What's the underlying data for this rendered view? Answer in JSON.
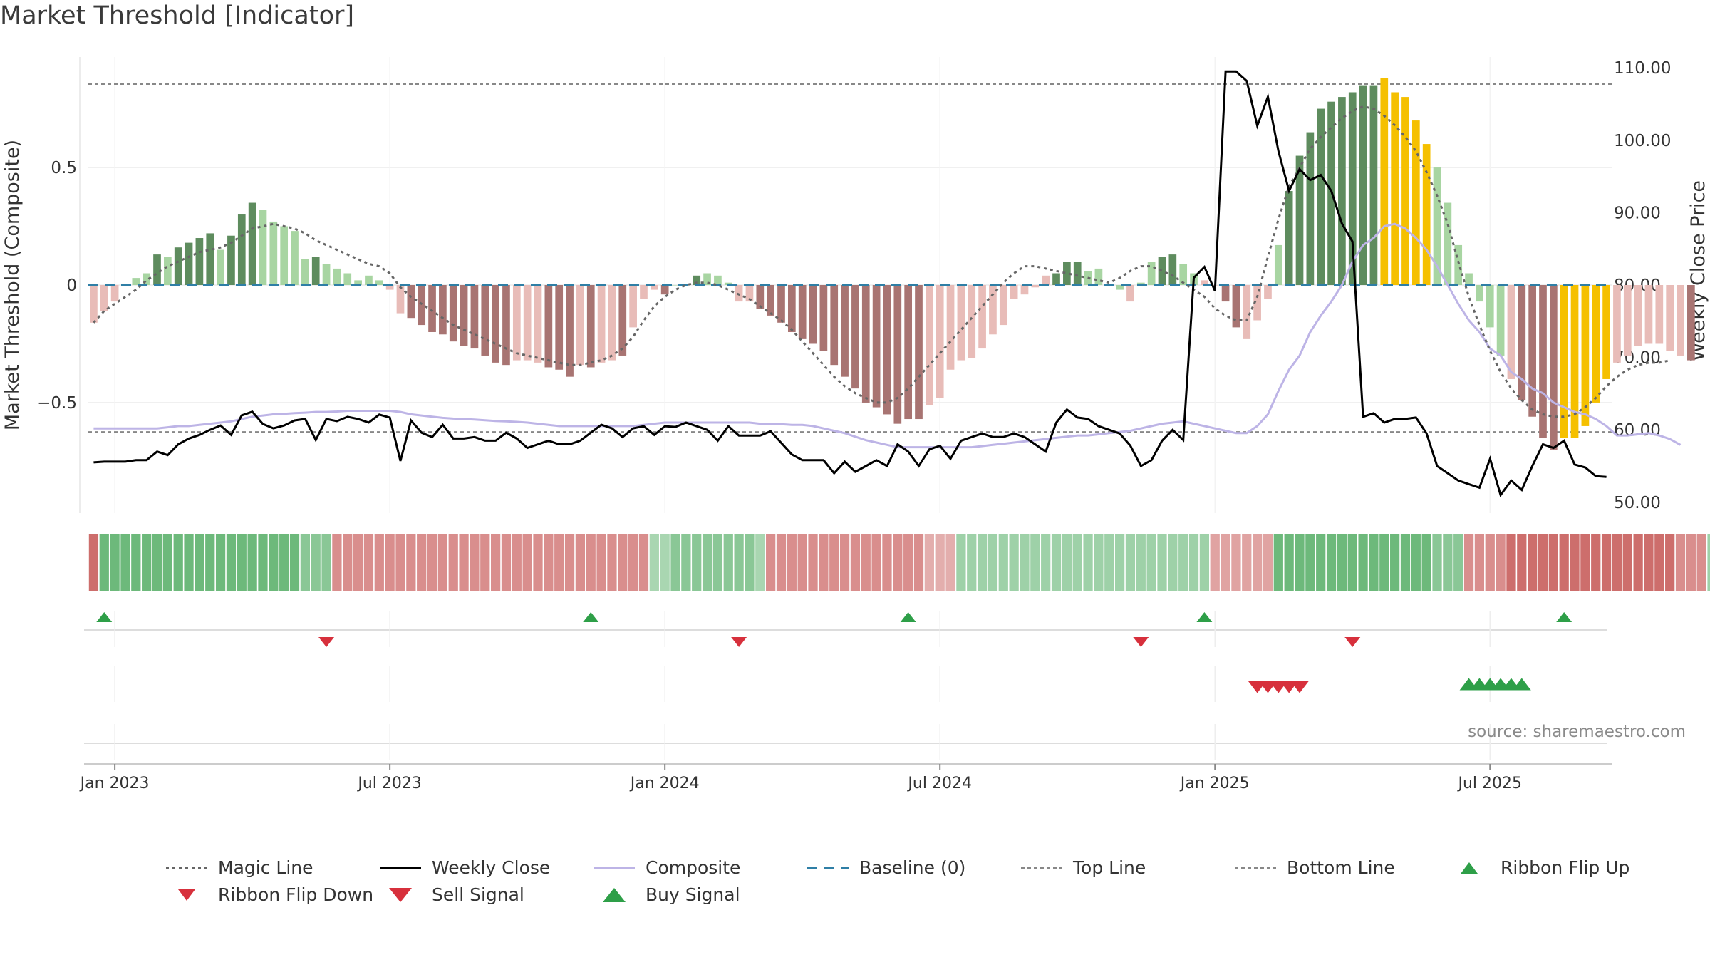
{
  "title": "Market Threshold [Indicator]",
  "source_note": "source: sharemaestro.com",
  "colors": {
    "strong_green": "#5e8c5e",
    "light_green": "#a8d5a2",
    "strong_red": "#a87472",
    "light_red": "#e8bcb8",
    "gold": "#f5c000",
    "composite": "#bdb4e6",
    "weekly_close": "#000000",
    "magic_line": "#666666",
    "baseline": "#2f7fa6",
    "threshold_line": "#888888",
    "signal_green": "#2e9f48",
    "signal_red": "#d7303c",
    "grid": "#ececec"
  },
  "chart_data": {
    "type": "bar",
    "ylabel": "Market Threshold (Composite)",
    "ylabel_right": "Weekly Close Price",
    "y_ticks": [
      "0.5",
      "0",
      "−0.5"
    ],
    "y_tick_values": [
      0.5,
      0,
      -0.5
    ],
    "y2_ticks": [
      "110.00",
      "100.00",
      "90.00",
      "80.00",
      "70.00",
      "60.00",
      "50.00"
    ],
    "y2_tick_values": [
      110,
      100,
      90,
      80,
      70,
      60,
      50
    ],
    "ylim": [
      -0.97,
      0.97
    ],
    "y2lim": [
      48.5,
      111.5
    ],
    "x_ticks": [
      "Jan 2023",
      "Jul 2023",
      "Jan 2024",
      "Jul 2024",
      "Jan 2025",
      "Jul 2025"
    ],
    "x_tick_weeks": [
      2,
      28,
      54,
      80,
      106,
      132
    ],
    "top_line": 0.855,
    "bottom_line": -0.625,
    "weeks": 144,
    "histogram": [
      -0.16,
      -0.11,
      -0.07,
      0.0,
      0.03,
      0.05,
      0.13,
      0.12,
      0.16,
      0.18,
      0.2,
      0.22,
      0.15,
      0.21,
      0.3,
      0.35,
      0.32,
      0.27,
      0.25,
      0.23,
      0.11,
      0.12,
      0.09,
      0.07,
      0.05,
      0.02,
      0.04,
      0.02,
      -0.02,
      -0.12,
      -0.14,
      -0.17,
      -0.2,
      -0.21,
      -0.24,
      -0.26,
      -0.27,
      -0.3,
      -0.33,
      -0.34,
      -0.32,
      -0.32,
      -0.33,
      -0.35,
      -0.36,
      -0.39,
      -0.34,
      -0.35,
      -0.33,
      -0.32,
      -0.3,
      -0.18,
      -0.06,
      -0.02,
      -0.04,
      0.0,
      0.0,
      0.04,
      0.05,
      0.04,
      0.01,
      -0.07,
      -0.07,
      -0.1,
      -0.13,
      -0.16,
      -0.2,
      -0.23,
      -0.25,
      -0.28,
      -0.34,
      -0.39,
      -0.44,
      -0.5,
      -0.52,
      -0.55,
      -0.59,
      -0.57,
      -0.57,
      -0.51,
      -0.48,
      -0.36,
      -0.32,
      -0.31,
      -0.27,
      -0.21,
      -0.17,
      -0.06,
      -0.04,
      -0.01,
      0.04,
      0.05,
      0.1,
      0.1,
      0.06,
      0.07,
      0.0,
      -0.02,
      -0.07,
      0.01,
      0.1,
      0.12,
      0.13,
      0.09,
      0.05,
      0.02,
      0.0,
      -0.07,
      -0.18,
      -0.23,
      -0.15,
      -0.06,
      0.17,
      0.4,
      0.55,
      0.65,
      0.75,
      0.78,
      0.8,
      0.82,
      0.85,
      0.85,
      0.88,
      0.82,
      0.8,
      0.7,
      0.6,
      0.5,
      0.35,
      0.17,
      0.05,
      -0.07,
      -0.18,
      -0.3,
      -0.4,
      -0.49,
      -0.56,
      -0.65,
      -0.7,
      -0.65,
      -0.65,
      -0.6,
      -0.5,
      -0.4,
      -0.33,
      -0.3,
      -0.26,
      -0.25,
      -0.25,
      -0.28,
      -0.3,
      -0.32
    ],
    "bar_styles": [
      "lr",
      "lr",
      "lr",
      "lg",
      "lg",
      "lg",
      "sg",
      "lg",
      "sg",
      "sg",
      "sg",
      "sg",
      "lg",
      "sg",
      "sg",
      "sg",
      "lg",
      "lg",
      "lg",
      "lg",
      "lg",
      "sg",
      "lg",
      "lg",
      "lg",
      "lg",
      "lg",
      "lg",
      "lr",
      "lr",
      "sr",
      "sr",
      "sr",
      "sr",
      "sr",
      "sr",
      "sr",
      "sr",
      "sr",
      "sr",
      "lr",
      "lr",
      "lr",
      "sr",
      "sr",
      "sr",
      "lr",
      "sr",
      "lr",
      "lr",
      "sr",
      "lr",
      "lr",
      "lr",
      "sr",
      "lg",
      "lg",
      "sg",
      "lg",
      "lg",
      "lg",
      "lr",
      "lr",
      "sr",
      "sr",
      "sr",
      "sr",
      "sr",
      "sr",
      "sr",
      "sr",
      "sr",
      "sr",
      "sr",
      "sr",
      "sr",
      "sr",
      "sr",
      "sr",
      "lr",
      "lr",
      "lr",
      "lr",
      "lr",
      "lr",
      "lr",
      "lr",
      "lr",
      "lr",
      "lr",
      "lr",
      "sg",
      "sg",
      "sg",
      "lg",
      "lg",
      "lr",
      "lg",
      "lr",
      "lg",
      "lg",
      "sg",
      "sg",
      "lg",
      "lg",
      "lr",
      "lr",
      "sr",
      "sr",
      "lr",
      "lr",
      "lr",
      "lg",
      "sg",
      "sg",
      "sg",
      "sg",
      "sg",
      "sg",
      "sg",
      "sg",
      "sg",
      "gd",
      "gd",
      "gd",
      "gd",
      "gd",
      "lg",
      "lg",
      "lg",
      "lg",
      "lg",
      "lg",
      "lg",
      "lr",
      "sr",
      "sr",
      "sr",
      "sr",
      "gd",
      "gd",
      "gd",
      "gd",
      "gd",
      "lr",
      "lr",
      "lr",
      "lr",
      "lr",
      "lr",
      "lr",
      "sr",
      "lr",
      "lr",
      "sr"
    ],
    "composite": [
      -0.61,
      -0.61,
      -0.61,
      -0.61,
      -0.61,
      -0.61,
      -0.61,
      -0.605,
      -0.6,
      -0.6,
      -0.595,
      -0.59,
      -0.585,
      -0.58,
      -0.57,
      -0.56,
      -0.555,
      -0.55,
      -0.548,
      -0.545,
      -0.543,
      -0.54,
      -0.54,
      -0.538,
      -0.535,
      -0.535,
      -0.535,
      -0.535,
      -0.535,
      -0.54,
      -0.55,
      -0.555,
      -0.56,
      -0.565,
      -0.568,
      -0.57,
      -0.572,
      -0.575,
      -0.578,
      -0.58,
      -0.582,
      -0.585,
      -0.59,
      -0.595,
      -0.6,
      -0.6,
      -0.6,
      -0.6,
      -0.6,
      -0.6,
      -0.6,
      -0.6,
      -0.595,
      -0.59,
      -0.585,
      -0.585,
      -0.585,
      -0.585,
      -0.585,
      -0.585,
      -0.585,
      -0.585,
      -0.585,
      -0.59,
      -0.59,
      -0.592,
      -0.595,
      -0.595,
      -0.6,
      -0.61,
      -0.62,
      -0.63,
      -0.645,
      -0.66,
      -0.67,
      -0.68,
      -0.69,
      -0.69,
      -0.69,
      -0.69,
      -0.69,
      -0.69,
      -0.69,
      -0.69,
      -0.685,
      -0.68,
      -0.675,
      -0.67,
      -0.665,
      -0.66,
      -0.655,
      -0.65,
      -0.645,
      -0.64,
      -0.64,
      -0.635,
      -0.63,
      -0.625,
      -0.62,
      -0.61,
      -0.6,
      -0.59,
      -0.585,
      -0.58,
      -0.59,
      -0.6,
      -0.61,
      -0.62,
      -0.63,
      -0.63,
      -0.6,
      -0.55,
      -0.45,
      -0.36,
      -0.3,
      -0.2,
      -0.13,
      -0.07,
      0.0,
      0.1,
      0.17,
      0.2,
      0.25,
      0.26,
      0.24,
      0.2,
      0.15,
      0.08,
      0.0,
      -0.08,
      -0.15,
      -0.2,
      -0.27,
      -0.3,
      -0.37,
      -0.4,
      -0.44,
      -0.46,
      -0.5,
      -0.52,
      -0.54,
      -0.55,
      -0.57,
      -0.6,
      -0.64,
      -0.64,
      -0.635,
      -0.63,
      -0.64,
      -0.655,
      -0.68
    ],
    "magic_line": [
      -0.16,
      -0.11,
      -0.08,
      -0.05,
      -0.02,
      0.02,
      0.05,
      0.08,
      0.1,
      0.12,
      0.14,
      0.15,
      0.16,
      0.18,
      0.21,
      0.24,
      0.25,
      0.26,
      0.25,
      0.24,
      0.22,
      0.19,
      0.17,
      0.15,
      0.13,
      0.11,
      0.09,
      0.08,
      0.05,
      -0.01,
      -0.05,
      -0.08,
      -0.11,
      -0.14,
      -0.17,
      -0.19,
      -0.21,
      -0.23,
      -0.25,
      -0.27,
      -0.29,
      -0.3,
      -0.31,
      -0.32,
      -0.33,
      -0.34,
      -0.34,
      -0.33,
      -0.32,
      -0.3,
      -0.27,
      -0.22,
      -0.15,
      -0.09,
      -0.05,
      -0.02,
      0.0,
      0.01,
      0.01,
      0.0,
      -0.02,
      -0.04,
      -0.06,
      -0.09,
      -0.12,
      -0.15,
      -0.19,
      -0.24,
      -0.29,
      -0.34,
      -0.39,
      -0.43,
      -0.46,
      -0.48,
      -0.5,
      -0.5,
      -0.48,
      -0.44,
      -0.39,
      -0.34,
      -0.29,
      -0.24,
      -0.19,
      -0.14,
      -0.09,
      -0.04,
      0.01,
      0.05,
      0.08,
      0.08,
      0.07,
      0.06,
      0.05,
      0.04,
      0.03,
      0.02,
      0.01,
      0.03,
      0.06,
      0.08,
      0.08,
      0.06,
      0.04,
      0.01,
      -0.02,
      -0.05,
      -0.1,
      -0.13,
      -0.15,
      -0.15,
      -0.05,
      0.12,
      0.28,
      0.42,
      0.5,
      0.58,
      0.63,
      0.67,
      0.71,
      0.74,
      0.76,
      0.75,
      0.72,
      0.68,
      0.63,
      0.57,
      0.48,
      0.38,
      0.26,
      0.1,
      -0.05,
      -0.17,
      -0.28,
      -0.37,
      -0.44,
      -0.49,
      -0.53,
      -0.55,
      -0.56,
      -0.56,
      -0.55,
      -0.52,
      -0.48,
      -0.43,
      -0.39,
      -0.36,
      -0.34,
      -0.33,
      -0.33,
      -0.32
    ],
    "weekly_close": [
      55.5,
      55.6,
      55.6,
      55.6,
      55.8,
      55.8,
      57.0,
      56.5,
      58.0,
      58.8,
      59.3,
      60.0,
      60.6,
      59.3,
      62.0,
      62.5,
      60.8,
      60.2,
      60.6,
      61.3,
      61.5,
      58.6,
      61.5,
      61.2,
      61.8,
      61.5,
      61.0,
      62.1,
      61.7,
      55.7,
      61.3,
      59.6,
      59.0,
      60.7,
      58.8,
      58.8,
      59.0,
      58.5,
      58.5,
      59.6,
      58.8,
      57.5,
      58.0,
      58.5,
      58.0,
      58.0,
      58.5,
      59.6,
      60.7,
      60.2,
      59.0,
      60.2,
      60.5,
      59.3,
      60.5,
      60.4,
      61.0,
      60.5,
      60.0,
      58.5,
      60.5,
      59.2,
      59.2,
      59.2,
      59.8,
      58.2,
      56.6,
      55.8,
      55.8,
      55.8,
      54.0,
      55.6,
      54.2,
      55.0,
      55.8,
      55.0,
      58.0,
      57.0,
      55.0,
      57.3,
      57.8,
      56.0,
      58.5,
      59.0,
      59.5,
      59.0,
      59.0,
      59.5,
      59.0,
      58.0,
      57.0,
      61.0,
      62.8,
      61.7,
      61.5,
      60.5,
      60.0,
      59.5,
      57.8,
      55.0,
      55.8,
      58.5,
      60.0,
      58.6,
      81.0,
      82.5,
      79.2,
      109.5,
      109.5,
      108.2,
      102.0,
      106.0,
      98.5,
      93.0,
      96.0,
      94.5,
      95.2,
      93.0,
      88.5,
      86.0,
      61.8,
      62.3,
      61.0,
      61.5,
      61.5,
      61.7,
      59.5,
      55.0,
      54.0,
      53.0,
      52.5,
      52.0,
      56.0,
      51.0,
      53.0,
      51.7,
      55.0,
      58.0,
      57.5,
      58.5,
      55.2,
      54.8,
      53.6,
      53.5
    ],
    "ribbon_levels": [
      -1,
      1,
      1,
      1,
      1,
      1,
      1,
      1,
      1,
      1,
      1,
      1,
      1,
      1,
      1,
      1,
      1,
      1,
      1,
      1,
      0.7,
      0.7,
      0.7,
      -0.7,
      -0.7,
      -0.7,
      -0.7,
      -0.7,
      -0.7,
      -0.7,
      -0.7,
      -0.7,
      -0.7,
      -0.7,
      -0.7,
      -0.7,
      -0.7,
      -0.7,
      -0.7,
      -0.7,
      -0.7,
      -0.7,
      -0.7,
      -0.7,
      -0.7,
      -0.7,
      -0.7,
      -0.7,
      -0.7,
      -0.7,
      -0.7,
      -0.7,
      -0.7,
      0.4,
      0.4,
      0.7,
      0.7,
      0.7,
      0.7,
      0.7,
      0.7,
      0.7,
      0.7,
      0.4,
      -0.7,
      -0.7,
      -0.7,
      -0.7,
      -0.7,
      -0.7,
      -0.7,
      -0.7,
      -0.7,
      -0.7,
      -0.7,
      -0.7,
      -0.7,
      -0.7,
      -0.7,
      -0.4,
      -0.4,
      -0.4,
      0.5,
      0.5,
      0.5,
      0.5,
      0.5,
      0.5,
      0.5,
      0.5,
      0.5,
      0.5,
      0.5,
      0.5,
      0.5,
      0.5,
      0.5,
      0.5,
      0.5,
      0.5,
      0.5,
      0.5,
      0.5,
      0.5,
      0.5,
      0.5,
      -0.5,
      -0.5,
      -0.5,
      -0.5,
      -0.5,
      -0.5,
      1,
      1,
      1,
      1,
      1,
      1,
      1,
      1,
      1,
      1,
      1,
      1,
      1,
      1,
      1,
      0.7,
      0.7,
      0.7,
      -0.7,
      -0.7,
      -0.7,
      -0.7,
      -1,
      -1,
      -1,
      -1,
      -1,
      -1,
      -1,
      -1,
      -1,
      -1,
      -1,
      -1,
      -1,
      -1,
      -1,
      -1,
      -0.7,
      -0.7,
      -0.7,
      0.5,
      0.5,
      0.5,
      0.5,
      0.5
    ],
    "ribbon_flip_up": [
      1,
      47,
      77,
      105,
      139
    ],
    "ribbon_flip_down": [
      22,
      61,
      99,
      119
    ],
    "sell_signal": [
      110,
      111,
      112,
      113,
      114
    ],
    "buy_signal": [
      130,
      131,
      132,
      133,
      134,
      135
    ],
    "legend": [
      {
        "label": "Magic Line",
        "kind": "dotted"
      },
      {
        "label": "Weekly Close",
        "kind": "solid"
      },
      {
        "label": "Composite",
        "kind": "composite"
      },
      {
        "label": "Baseline (0)",
        "kind": "dashed"
      },
      {
        "label": "Top Line",
        "kind": "thin-dashed"
      },
      {
        "label": "Bottom Line",
        "kind": "thin-dashed"
      },
      {
        "label": "Ribbon Flip Up",
        "kind": "tri-up-small"
      },
      {
        "label": "Ribbon Flip Down",
        "kind": "tri-down-small"
      },
      {
        "label": "Sell Signal",
        "kind": "tri-down-large"
      },
      {
        "label": "Buy Signal",
        "kind": "tri-up-large"
      }
    ]
  }
}
